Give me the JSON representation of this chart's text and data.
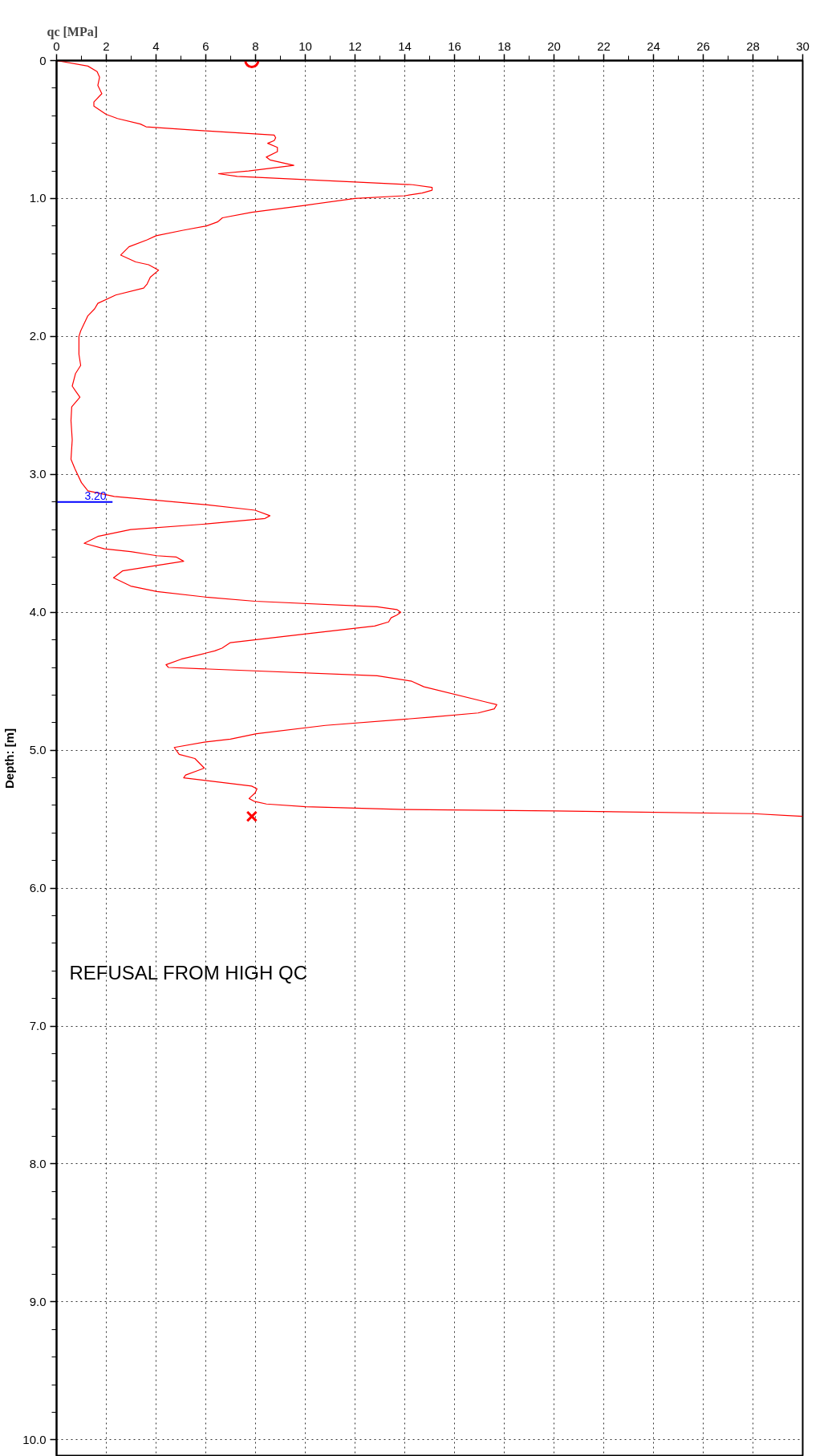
{
  "chart_data": {
    "type": "line",
    "xlabel": "qc [MPa]",
    "ylabel": "Depth: [m]",
    "xlim": [
      0,
      30
    ],
    "xticks": [
      0,
      2,
      4,
      6,
      8,
      10,
      12,
      14,
      16,
      18,
      20,
      22,
      24,
      26,
      28,
      30
    ],
    "ylim": [
      10.12,
      0
    ],
    "yticks": [
      0,
      {
        "value": 1,
        "label": "1.0"
      },
      {
        "value": 2,
        "label": "2.0"
      },
      {
        "value": 3,
        "label": "3.0"
      },
      {
        "value": 4,
        "label": "4.0"
      },
      {
        "value": 5,
        "label": "5.0"
      },
      {
        "value": 6,
        "label": "6.0"
      },
      {
        "value": 7,
        "label": "7.0"
      },
      {
        "value": 8,
        "label": "8.0"
      },
      {
        "value": 9,
        "label": "9.0"
      },
      {
        "value": 10,
        "label": "10.0"
      }
    ],
    "grid": true,
    "marker": "none",
    "series": [
      {
        "color": "#ff0000",
        "x": [
          0,
          1.26,
          1.63,
          1.73,
          1.66,
          1.82,
          1.5,
          1.5,
          1.99,
          2.45,
          3.37,
          3.6,
          6.01,
          8.75,
          8.81,
          8.75,
          8.49,
          8.88,
          8.88,
          8.43,
          8.58,
          9.54,
          7.72,
          6.51,
          7.26,
          12.0,
          14.31,
          15.1,
          15.1,
          14.7,
          14.0,
          12.0,
          9.96,
          7.85,
          6.67,
          6.47,
          6.01,
          5.09,
          4.0,
          3.64,
          2.91,
          2.58,
          3.18,
          3.7,
          4.1,
          3.77,
          3.64,
          3.5,
          2.38,
          1.66,
          1.53,
          1.26,
          0.97,
          0.9,
          0.9,
          0.97,
          0.76,
          0.63,
          0.74,
          0.94,
          0.61,
          0.58,
          0.63,
          0.58,
          0.74,
          1.0,
          1.26,
          2.32,
          6.01,
          7.98,
          8.58,
          8.38,
          6.01,
          2.98,
          1.66,
          1.11,
          1.92,
          2.98,
          4.03,
          4.82,
          5.11,
          4.03,
          2.65,
          2.29,
          2.98,
          4.03,
          6.01,
          7.98,
          12.89,
          13.68,
          13.84,
          13.68,
          13.45,
          13.35,
          12.79,
          10.32,
          6.99,
          6.65,
          6.36,
          5.01,
          4.4,
          4.5,
          12.89,
          14.28,
          14.77,
          17.25,
          17.7,
          17.6,
          16.95,
          15.07,
          10.81,
          8.04,
          6.99,
          6.0,
          4.73,
          4.93,
          5.56,
          5.94,
          5.64,
          5.19,
          5.11,
          7.84,
          8.06,
          7.98,
          7.74,
          7.94,
          8.44,
          10.02,
          13.98,
          20.02,
          28.0,
          30.0
        ],
        "values": [
          0,
          0.04,
          0.08,
          0.12,
          0.18,
          0.24,
          0.3,
          0.33,
          0.39,
          0.42,
          0.46,
          0.48,
          0.51,
          0.54,
          0.56,
          0.58,
          0.6,
          0.63,
          0.66,
          0.7,
          0.72,
          0.76,
          0.8,
          0.82,
          0.84,
          0.88,
          0.9,
          0.92,
          0.94,
          0.96,
          0.98,
          1.0,
          1.05,
          1.1,
          1.14,
          1.17,
          1.2,
          1.23,
          1.27,
          1.3,
          1.35,
          1.41,
          1.46,
          1.48,
          1.52,
          1.57,
          1.62,
          1.65,
          1.7,
          1.76,
          1.8,
          1.85,
          1.96,
          2.0,
          2.13,
          2.21,
          2.27,
          2.36,
          2.39,
          2.44,
          2.51,
          2.61,
          2.75,
          2.89,
          2.96,
          3.06,
          3.12,
          3.16,
          3.22,
          3.26,
          3.3,
          3.32,
          3.36,
          3.4,
          3.45,
          3.5,
          3.54,
          3.56,
          3.59,
          3.6,
          3.63,
          3.66,
          3.7,
          3.75,
          3.81,
          3.85,
          3.89,
          3.92,
          3.96,
          3.98,
          4.0,
          4.02,
          4.04,
          4.07,
          4.1,
          4.15,
          4.22,
          4.26,
          4.28,
          4.34,
          4.38,
          4.4,
          4.46,
          4.5,
          4.54,
          4.65,
          4.67,
          4.7,
          4.73,
          4.76,
          4.82,
          4.88,
          4.92,
          4.94,
          4.98,
          5.03,
          5.06,
          5.13,
          5.15,
          5.18,
          5.2,
          5.26,
          5.28,
          5.31,
          5.35,
          5.37,
          5.39,
          5.41,
          5.43,
          5.44,
          5.46,
          5.48
        ]
      },
      {
        "type": "scatter",
        "marker": "circle",
        "color": "#ff0000",
        "x": [
          7.85
        ],
        "values": [
          0
        ]
      },
      {
        "type": "scatter",
        "marker": "cross",
        "color": "#ff0000",
        "x": [
          7.85
        ],
        "values": [
          5.48
        ]
      }
    ],
    "ref_lines": [
      {
        "axis": "y",
        "value": 3.2,
        "label": "3.20",
        "color": "#0000ff"
      }
    ],
    "annotations": [
      "REFUSAL FROM HIGH QC"
    ]
  }
}
